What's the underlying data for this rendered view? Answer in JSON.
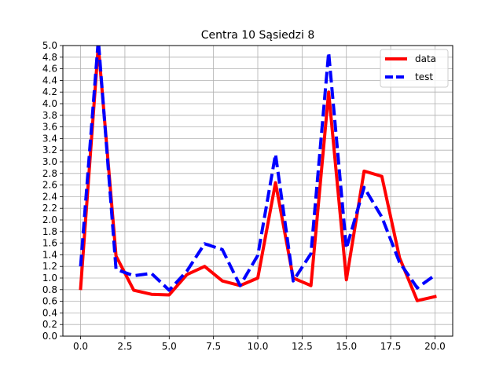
{
  "chart_data": {
    "type": "line",
    "title": "Centra 10 Sąsiedzi 8",
    "xlabel": "",
    "ylabel": "",
    "xlim": [
      -1,
      21
    ],
    "ylim": [
      0,
      5
    ],
    "xticks": [
      0,
      2.5,
      5,
      7.5,
      10,
      12.5,
      15,
      17.5,
      20
    ],
    "xtick_labels": [
      "0.0",
      "2.5",
      "5.0",
      "7.5",
      "10.0",
      "12.5",
      "15.0",
      "17.5",
      "20.0"
    ],
    "yticks": [
      0,
      0.2,
      0.4,
      0.6,
      0.8,
      1.0,
      1.2,
      1.4,
      1.6,
      1.8,
      2.0,
      2.2,
      2.4,
      2.6,
      2.8,
      3.0,
      3.2,
      3.4,
      3.6,
      3.8,
      4.0,
      4.2,
      4.4,
      4.6,
      4.8,
      5.0
    ],
    "ytick_labels": [
      "0.0",
      "0.2",
      "0.4",
      "0.6",
      "0.8",
      "1.0",
      "1.2",
      "1.4",
      "1.6",
      "1.8",
      "2.0",
      "2.2",
      "2.4",
      "2.6",
      "2.8",
      "3.0",
      "3.2",
      "3.4",
      "3.6",
      "3.8",
      "4.0",
      "4.2",
      "4.4",
      "4.6",
      "4.8",
      "5.0"
    ],
    "grid": true,
    "legend_position": "top-right",
    "x": [
      0,
      1,
      2,
      3,
      4,
      5,
      6,
      7,
      8,
      9,
      10,
      11,
      12,
      13,
      14,
      15,
      16,
      17,
      18,
      19,
      20
    ],
    "series": [
      {
        "name": "data",
        "color": "#ff0000",
        "style": "solid",
        "values": [
          0.82,
          5.0,
          1.38,
          0.79,
          0.72,
          0.71,
          1.06,
          1.2,
          0.95,
          0.87,
          1.0,
          2.64,
          1.0,
          0.87,
          4.2,
          0.97,
          2.84,
          2.75,
          1.35,
          0.61,
          0.68
        ]
      },
      {
        "name": "test",
        "color": "#0000ff",
        "style": "dashed",
        "values": [
          1.2,
          5.1,
          1.15,
          1.04,
          1.08,
          0.79,
          1.12,
          1.59,
          1.49,
          0.87,
          1.39,
          3.13,
          0.95,
          1.42,
          4.88,
          1.51,
          2.56,
          2.05,
          1.27,
          0.83,
          1.05
        ]
      }
    ]
  }
}
